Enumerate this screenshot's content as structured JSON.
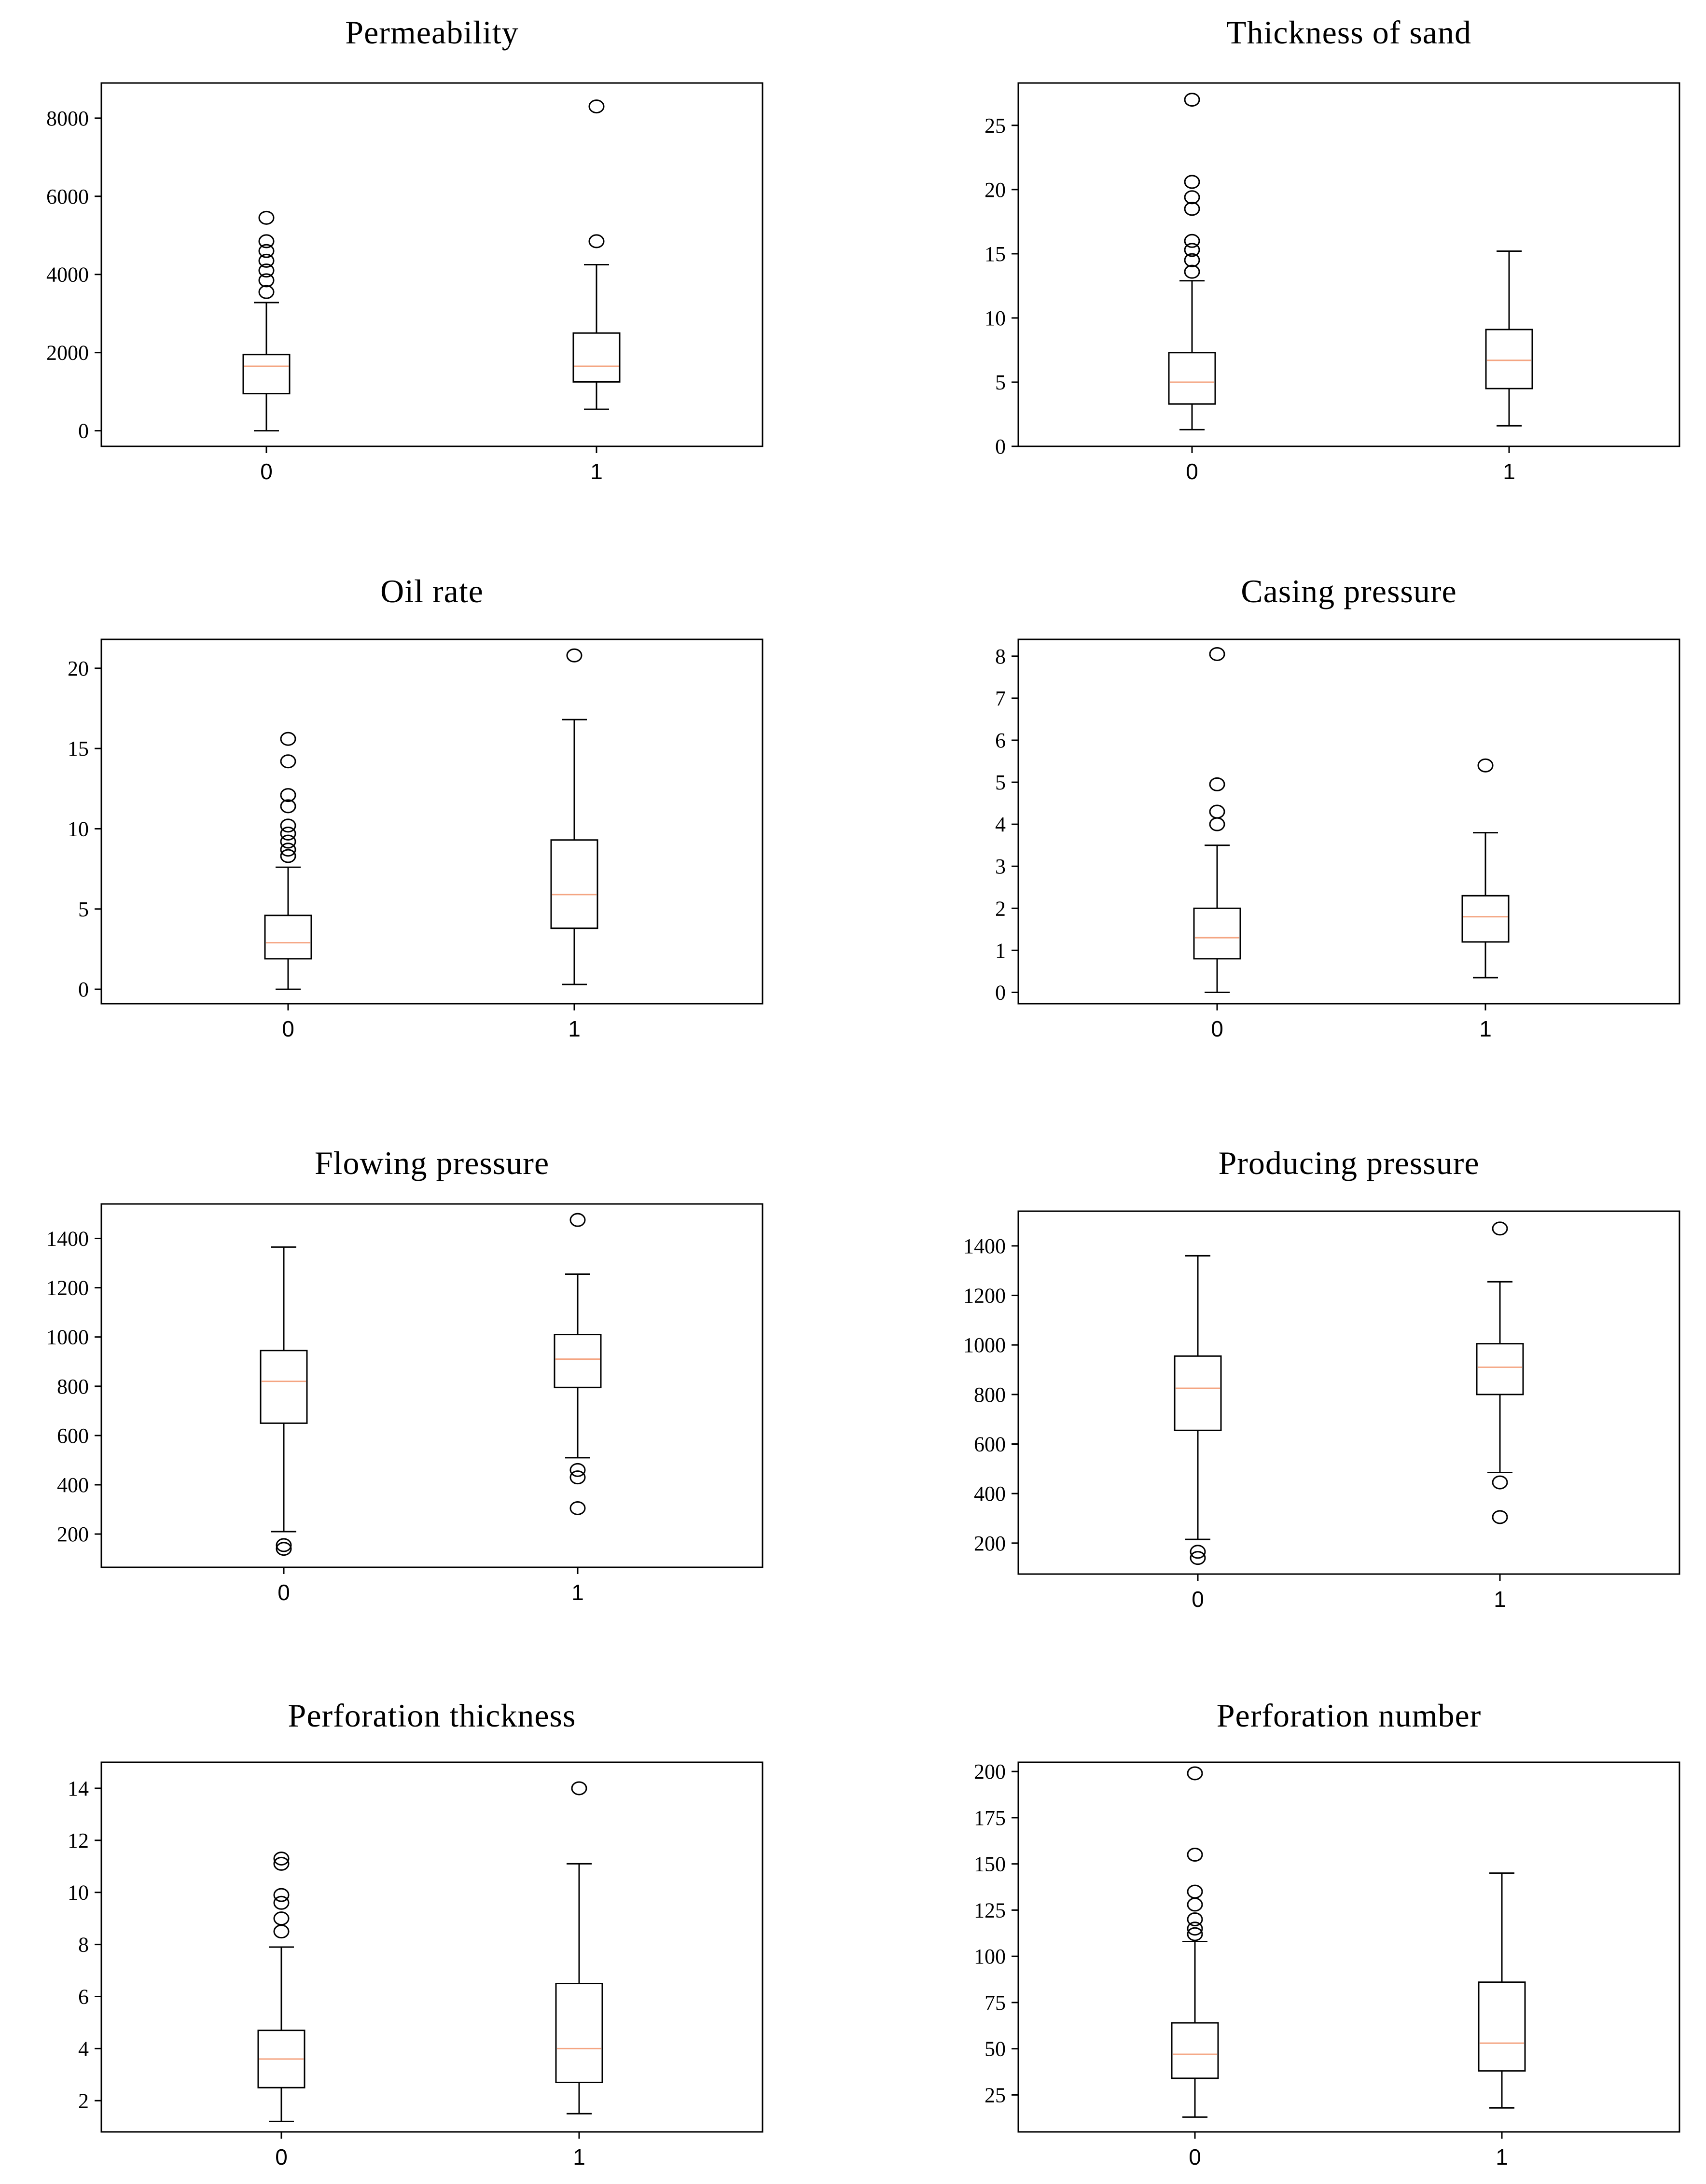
{
  "colors": {
    "axis": "#000000",
    "median": "#f4a582",
    "background": "#ffffff"
  },
  "chart_data": [
    {
      "type": "box",
      "title": "Permeability",
      "categories": [
        "0",
        "1"
      ],
      "yticks": [
        "0",
        "2000",
        "4000",
        "6000",
        "8000"
      ],
      "ylim": [
        -400,
        8900
      ],
      "series": [
        {
          "name": "0",
          "whisker_low": 0,
          "q1": 950,
          "median": 1650,
          "q3": 1950,
          "whisker_high": 3280,
          "outliers": [
            3550,
            3850,
            4100,
            4350,
            4600,
            4850,
            5450
          ]
        },
        {
          "name": "1",
          "whisker_low": 550,
          "q1": 1250,
          "median": 1650,
          "q3": 2500,
          "whisker_high": 4250,
          "outliers": [
            4850,
            8300
          ]
        }
      ]
    },
    {
      "type": "box",
      "title": "Thickness of sand",
      "categories": [
        "0",
        "1"
      ],
      "yticks": [
        "0",
        "5",
        "10",
        "15",
        "20",
        "25"
      ],
      "ylim": [
        0,
        28.3
      ],
      "series": [
        {
          "name": "0",
          "whisker_low": 1.3,
          "q1": 3.3,
          "median": 5.0,
          "q3": 7.3,
          "whisker_high": 12.9,
          "outliers": [
            13.6,
            14.5,
            15.3,
            16.0,
            18.5,
            19.4,
            20.6,
            27.0
          ]
        },
        {
          "name": "1",
          "whisker_low": 1.6,
          "q1": 4.5,
          "median": 6.7,
          "q3": 9.1,
          "whisker_high": 15.2,
          "outliers": []
        }
      ]
    },
    {
      "type": "box",
      "title": "Oil rate",
      "categories": [
        "0",
        "1"
      ],
      "yticks": [
        "0",
        "5",
        "10",
        "15",
        "20"
      ],
      "ylim": [
        -0.9,
        21.8
      ],
      "series": [
        {
          "name": "0",
          "whisker_low": 0,
          "q1": 1.9,
          "median": 2.9,
          "q3": 4.6,
          "whisker_high": 7.6,
          "outliers": [
            8.3,
            8.7,
            9.2,
            9.7,
            10.2,
            11.4,
            12.1,
            14.2,
            15.6
          ]
        },
        {
          "name": "1",
          "whisker_low": 0.3,
          "q1": 3.8,
          "median": 5.9,
          "q3": 9.3,
          "whisker_high": 16.8,
          "outliers": [
            20.8
          ]
        }
      ]
    },
    {
      "type": "box",
      "title": "Casing pressure",
      "categories": [
        "0",
        "1"
      ],
      "yticks": [
        "0",
        "1",
        "2",
        "3",
        "4",
        "5",
        "6",
        "7",
        "8"
      ],
      "ylim": [
        -0.27,
        8.4
      ],
      "series": [
        {
          "name": "0",
          "whisker_low": 0,
          "q1": 0.8,
          "median": 1.3,
          "q3": 2.0,
          "whisker_high": 3.5,
          "outliers": [
            4.0,
            4.3,
            4.95,
            8.05
          ]
        },
        {
          "name": "1",
          "whisker_low": 0.35,
          "q1": 1.2,
          "median": 1.8,
          "q3": 2.3,
          "whisker_high": 3.8,
          "outliers": [
            5.4
          ]
        }
      ]
    },
    {
      "type": "box",
      "title": "Flowing pressure",
      "categories": [
        "0",
        "1"
      ],
      "yticks": [
        "200",
        "400",
        "600",
        "800",
        "1000",
        "1200",
        "1400"
      ],
      "ylim": [
        65,
        1540
      ],
      "series": [
        {
          "name": "0",
          "whisker_low": 210,
          "q1": 650,
          "median": 820,
          "q3": 945,
          "whisker_high": 1365,
          "outliers": [
            140,
            155
          ]
        },
        {
          "name": "1",
          "whisker_low": 510,
          "q1": 795,
          "median": 910,
          "q3": 1010,
          "whisker_high": 1255,
          "outliers": [
            305,
            430,
            460,
            1475
          ]
        }
      ]
    },
    {
      "type": "box",
      "title": "Producing pressure",
      "categories": [
        "0",
        "1"
      ],
      "yticks": [
        "200",
        "400",
        "600",
        "800",
        "1000",
        "1200",
        "1400"
      ],
      "ylim": [
        75,
        1540
      ],
      "series": [
        {
          "name": "0",
          "whisker_low": 215,
          "q1": 655,
          "median": 825,
          "q3": 955,
          "whisker_high": 1360,
          "outliers": [
            140,
            165
          ]
        },
        {
          "name": "1",
          "whisker_low": 485,
          "q1": 800,
          "median": 910,
          "q3": 1005,
          "whisker_high": 1255,
          "outliers": [
            305,
            445,
            1470
          ]
        }
      ]
    },
    {
      "type": "box",
      "title": "Perforation thickness",
      "categories": [
        "0",
        "1"
      ],
      "yticks": [
        "2",
        "4",
        "6",
        "8",
        "10",
        "12",
        "14"
      ],
      "ylim": [
        0.8,
        15.0
      ],
      "series": [
        {
          "name": "0",
          "whisker_low": 1.2,
          "q1": 2.5,
          "median": 3.6,
          "q3": 4.7,
          "whisker_high": 7.9,
          "outliers": [
            8.5,
            9.0,
            9.6,
            9.9,
            11.1,
            11.3
          ]
        },
        {
          "name": "1",
          "whisker_low": 1.5,
          "q1": 2.7,
          "median": 4.0,
          "q3": 6.5,
          "whisker_high": 11.1,
          "outliers": [
            14.0
          ]
        }
      ]
    },
    {
      "type": "box",
      "title": "Perforation number",
      "categories": [
        "0",
        "1"
      ],
      "yticks": [
        "25",
        "50",
        "75",
        "100",
        "125",
        "150",
        "175",
        "200"
      ],
      "ylim": [
        5,
        205
      ],
      "series": [
        {
          "name": "0",
          "whisker_low": 13,
          "q1": 34,
          "median": 47,
          "q3": 64,
          "whisker_high": 108,
          "outliers": [
            112,
            115,
            120,
            128,
            135,
            155,
            199
          ]
        },
        {
          "name": "1",
          "whisker_low": 18,
          "q1": 38,
          "median": 53,
          "q3": 86,
          "whisker_high": 145,
          "outliers": []
        }
      ]
    }
  ]
}
